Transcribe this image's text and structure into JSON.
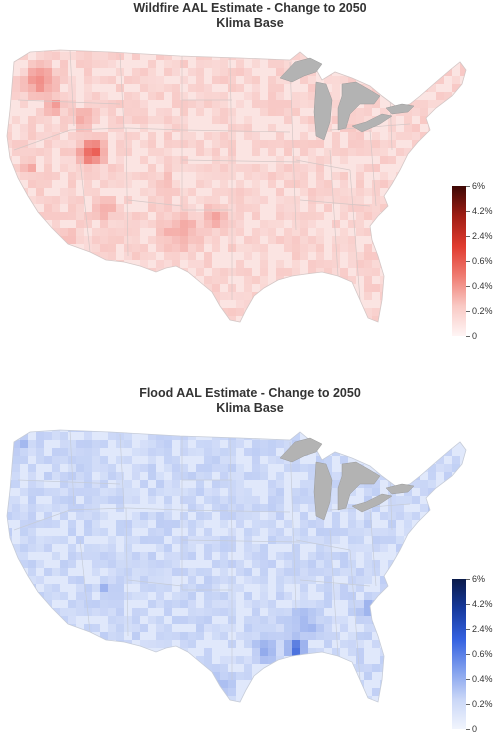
{
  "maps": [
    {
      "id": "wildfire",
      "title_line1": "Wildfire AAL Estimate - Change to 2050",
      "title_line2": "Klima Base",
      "base_color": "#fbe4e2",
      "hot_color": "#e8473d",
      "border_color": "#d4c7c6",
      "legend": {
        "stops": [
          "#fff5f5",
          "#f9c9c4",
          "#ef7c72",
          "#e03b2f",
          "#a01d14",
          "#3d0804"
        ],
        "labels": [
          "6%",
          "4.2%",
          "2.4%",
          "0.6%",
          "0.4%",
          "0.2%",
          "0"
        ]
      }
    },
    {
      "id": "flood",
      "title_line1": "Flood AAL Estimate - Change to 2050",
      "title_line2": "Klima Base",
      "base_color": "#e0e8fb",
      "hot_color": "#2453d6",
      "border_color": "#c6ccd8",
      "legend": {
        "stops": [
          "#f1f4fd",
          "#c9d6f7",
          "#7e9ded",
          "#3461e0",
          "#163a9e",
          "#0a1a4a"
        ],
        "labels": [
          "6%",
          "4.2%",
          "2.4%",
          "0.6%",
          "0.4%",
          "0.2%",
          "0"
        ]
      }
    }
  ]
}
